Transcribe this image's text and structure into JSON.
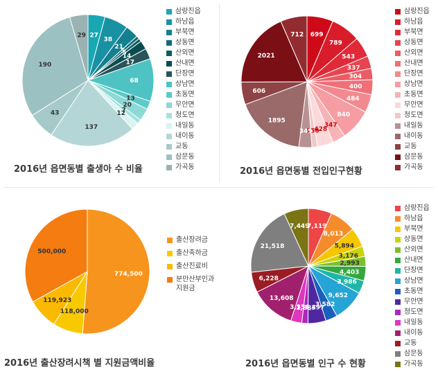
{
  "chart_data": [
    {
      "type": "pie",
      "title": "2016년 읍면동별 출생아 수 비율",
      "categories": [
        "삼랑진읍",
        "하남읍",
        "부북면",
        "상동면",
        "산외면",
        "산내면",
        "단장면",
        "상남면",
        "초동면",
        "무안면",
        "청도면",
        "내일동",
        "내이동",
        "교동",
        "삼문동",
        "가곡동"
      ],
      "values": [
        27,
        38,
        21,
        5,
        5,
        14,
        17,
        68,
        13,
        20,
        7,
        12,
        137,
        43,
        190,
        29
      ],
      "colors": [
        "#19a7b4",
        "#1892a3",
        "#147f8e",
        "#126a78",
        "#0d5c63",
        "#0a4d50",
        "#26555a",
        "#4fc3c3",
        "#5ccac8",
        "#8dd9d6",
        "#a2e2df",
        "#d9f4f3",
        "#b5d6d6",
        "#a6caca",
        "#9cc1c2",
        "#9ab2b2"
      ],
      "label_colors": [
        "#ffffff",
        "#ffffff",
        "#ffffff",
        "#ffffff",
        "#ffffff",
        "#ffffff",
        "#ffffff",
        "#ffffff",
        "#333333",
        "#333333",
        "#333333",
        "#333333",
        "#333333",
        "#333333",
        "#333333",
        "#333333"
      ]
    },
    {
      "type": "pie",
      "title": "2016년 읍면동별 전입인구현황",
      "categories": [
        "삼랑진읍",
        "하남읍",
        "부북면",
        "상동면",
        "산외면",
        "산내면",
        "단장면",
        "상남면",
        "초동면",
        "무안면",
        "청도면",
        "내일동",
        "내이동",
        "교동",
        "삼문동",
        "가곡동"
      ],
      "values": [
        699,
        789,
        543,
        337,
        304,
        400,
        484,
        840,
        347,
        428,
        150,
        349,
        1895,
        606,
        2021,
        712
      ],
      "colors": [
        "#cf0a18",
        "#d81c2a",
        "#e12a37",
        "#e8444f",
        "#ec5c64",
        "#f07078",
        "#f38990",
        "#f59da2",
        "#f6b4b7",
        "#fbd9db",
        "#f0c9c9",
        "#b89292",
        "#9a6969",
        "#8e4444",
        "#7a0f16",
        "#932c30"
      ],
      "label_colors": [
        "#ffffff",
        "#ffffff",
        "#ffffff",
        "#ffffff",
        "#ffffff",
        "#ffffff",
        "#ffffff",
        "#ffffff",
        "#cc0a10",
        "#cc0a10",
        "#cc0a10",
        "#ffffff",
        "#ffffff",
        "#ffffff",
        "#ffffff",
        "#ffffff"
      ]
    },
    {
      "type": "pie",
      "title": "2016년 출산장려시책 별 지원금액비율",
      "categories": [
        "출산장려금",
        "출산축하금",
        "출산진료비",
        "분만산부인과 지원금"
      ],
      "values": [
        774500,
        118000,
        119923,
        500000
      ],
      "value_labels": [
        "774,500",
        "118,000",
        "119,923",
        "500,000"
      ],
      "colors": [
        "#f7941d",
        "#f9c900",
        "#fbb900",
        "#f57c10"
      ],
      "label_colors": [
        "#ffffff",
        "#333333",
        "#333333",
        "#333333"
      ]
    },
    {
      "type": "pie",
      "title": "2016년 읍면동별 인구 수 현황",
      "categories": [
        "삼랑진읍",
        "하남읍",
        "부북면",
        "상동면",
        "산외면",
        "산내면",
        "단장면",
        "상남면",
        "초동면",
        "무안면",
        "청도면",
        "내일동",
        "내이동",
        "교동",
        "삼문동",
        "가곡동"
      ],
      "values": [
        7119,
        8013,
        5894,
        3176,
        2993,
        4403,
        3986,
        9652,
        3582,
        5497,
        1883,
        3354,
        13608,
        6228,
        21518,
        7449
      ],
      "value_labels": [
        "7,119",
        "8,013",
        "5,894",
        "3,176",
        "2,993",
        "4,403",
        "3,986",
        "9,652",
        "3,582",
        "5,497",
        "1,883",
        "3,354",
        "13,608",
        "6,228",
        "21,518",
        "7,449"
      ],
      "colors": [
        "#ee4547",
        "#f58c2c",
        "#f6c700",
        "#c8d410",
        "#7cbf2d",
        "#35a83e",
        "#1fb6a8",
        "#25a4d6",
        "#1a5fbc",
        "#5027a3",
        "#b027b9",
        "#dd37c2",
        "#a1206e",
        "#9b1c23",
        "#7f7f7f",
        "#7b7414"
      ],
      "label_colors": [
        "#ffffff",
        "#ffffff",
        "#333333",
        "#333333",
        "#333333",
        "#ffffff",
        "#ffffff",
        "#ffffff",
        "#ffffff",
        "#ffffff",
        "#ffffff",
        "#ffffff",
        "#ffffff",
        "#ffffff",
        "#ffffff",
        "#ffffff"
      ]
    }
  ]
}
